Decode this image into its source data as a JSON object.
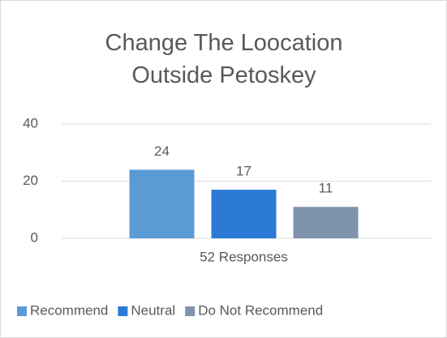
{
  "chart_data": {
    "type": "bar",
    "title": "Change The Loocation Outside Petoskey",
    "categories": [
      "52 Responses"
    ],
    "series": [
      {
        "name": "Recommend",
        "color": "#5b9bd5",
        "values": [
          24
        ]
      },
      {
        "name": "Neutral",
        "color": "#2c7ad6",
        "values": [
          17
        ]
      },
      {
        "name": "Do Not Recommend",
        "color": "#7f93ad",
        "values": [
          11
        ]
      }
    ],
    "ylim": [
      0,
      40
    ],
    "yticks": [
      0,
      20,
      40
    ],
    "grid": true,
    "legend": "bottom"
  }
}
